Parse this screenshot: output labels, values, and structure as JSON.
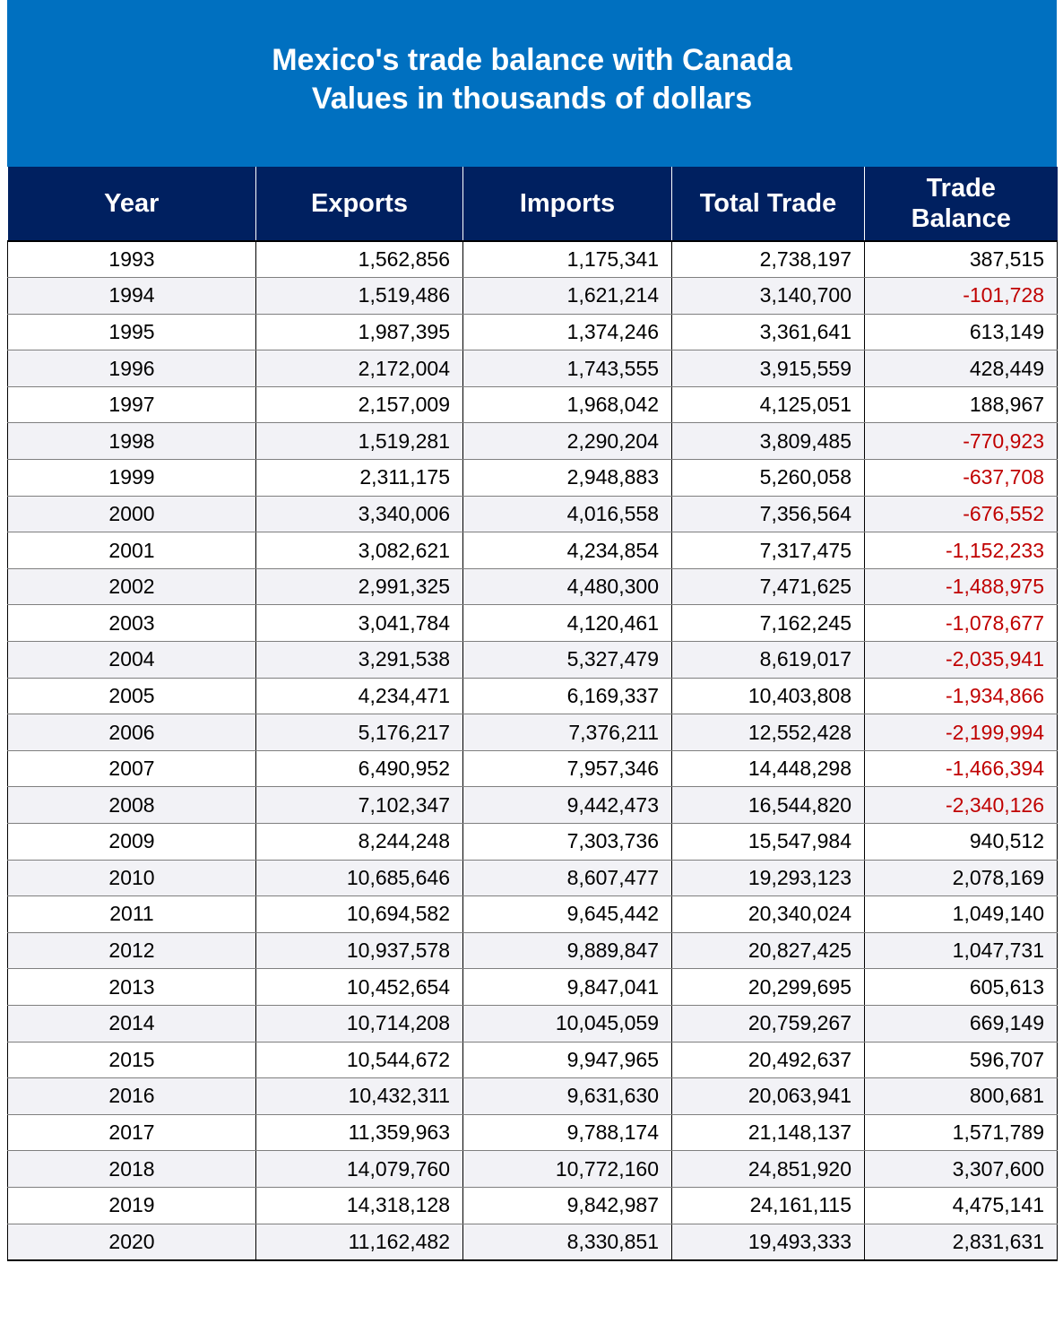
{
  "title": {
    "line1": "Mexico's trade balance with Canada",
    "line2": "Values in thousands of dollars"
  },
  "colors": {
    "title_band": "#0070C0",
    "header_band": "#002060",
    "negative_text": "#C00000",
    "alt_row": "#F2F2F6"
  },
  "table": {
    "headers": [
      "Year",
      "Exports",
      "Imports",
      "Total Trade",
      "Trade Balance"
    ],
    "rows": [
      [
        "1993",
        "1,562,856",
        "1,175,341",
        "2,738,197",
        "387,515"
      ],
      [
        "1994",
        "1,519,486",
        "1,621,214",
        "3,140,700",
        "-101,728"
      ],
      [
        "1995",
        "1,987,395",
        "1,374,246",
        "3,361,641",
        "613,149"
      ],
      [
        "1996",
        "2,172,004",
        "1,743,555",
        "3,915,559",
        "428,449"
      ],
      [
        "1997",
        "2,157,009",
        "1,968,042",
        "4,125,051",
        "188,967"
      ],
      [
        "1998",
        "1,519,281",
        "2,290,204",
        "3,809,485",
        "-770,923"
      ],
      [
        "1999",
        "2,311,175",
        "2,948,883",
        "5,260,058",
        "-637,708"
      ],
      [
        "2000",
        "3,340,006",
        "4,016,558",
        "7,356,564",
        "-676,552"
      ],
      [
        "2001",
        "3,082,621",
        "4,234,854",
        "7,317,475",
        "-1,152,233"
      ],
      [
        "2002",
        "2,991,325",
        "4,480,300",
        "7,471,625",
        "-1,488,975"
      ],
      [
        "2003",
        "3,041,784",
        "4,120,461",
        "7,162,245",
        "-1,078,677"
      ],
      [
        "2004",
        "3,291,538",
        "5,327,479",
        "8,619,017",
        "-2,035,941"
      ],
      [
        "2005",
        "4,234,471",
        "6,169,337",
        "10,403,808",
        "-1,934,866"
      ],
      [
        "2006",
        "5,176,217",
        "7,376,211",
        "12,552,428",
        "-2,199,994"
      ],
      [
        "2007",
        "6,490,952",
        "7,957,346",
        "14,448,298",
        "-1,466,394"
      ],
      [
        "2008",
        "7,102,347",
        "9,442,473",
        "16,544,820",
        "-2,340,126"
      ],
      [
        "2009",
        "8,244,248",
        "7,303,736",
        "15,547,984",
        "940,512"
      ],
      [
        "2010",
        "10,685,646",
        "8,607,477",
        "19,293,123",
        "2,078,169"
      ],
      [
        "2011",
        "10,694,582",
        "9,645,442",
        "20,340,024",
        "1,049,140"
      ],
      [
        "2012",
        "10,937,578",
        "9,889,847",
        "20,827,425",
        "1,047,731"
      ],
      [
        "2013",
        "10,452,654",
        "9,847,041",
        "20,299,695",
        "605,613"
      ],
      [
        "2014",
        "10,714,208",
        "10,045,059",
        "20,759,267",
        "669,149"
      ],
      [
        "2015",
        "10,544,672",
        "9,947,965",
        "20,492,637",
        "596,707"
      ],
      [
        "2016",
        "10,432,311",
        "9,631,630",
        "20,063,941",
        "800,681"
      ],
      [
        "2017",
        "11,359,963",
        "9,788,174",
        "21,148,137",
        "1,571,789"
      ],
      [
        "2018",
        "14,079,760",
        "10,772,160",
        "24,851,920",
        "3,307,600"
      ],
      [
        "2019",
        "14,318,128",
        "9,842,987",
        "24,161,115",
        "4,475,141"
      ],
      [
        "2020",
        "11,162,482",
        "8,330,851",
        "19,493,333",
        "2,831,631"
      ]
    ]
  }
}
